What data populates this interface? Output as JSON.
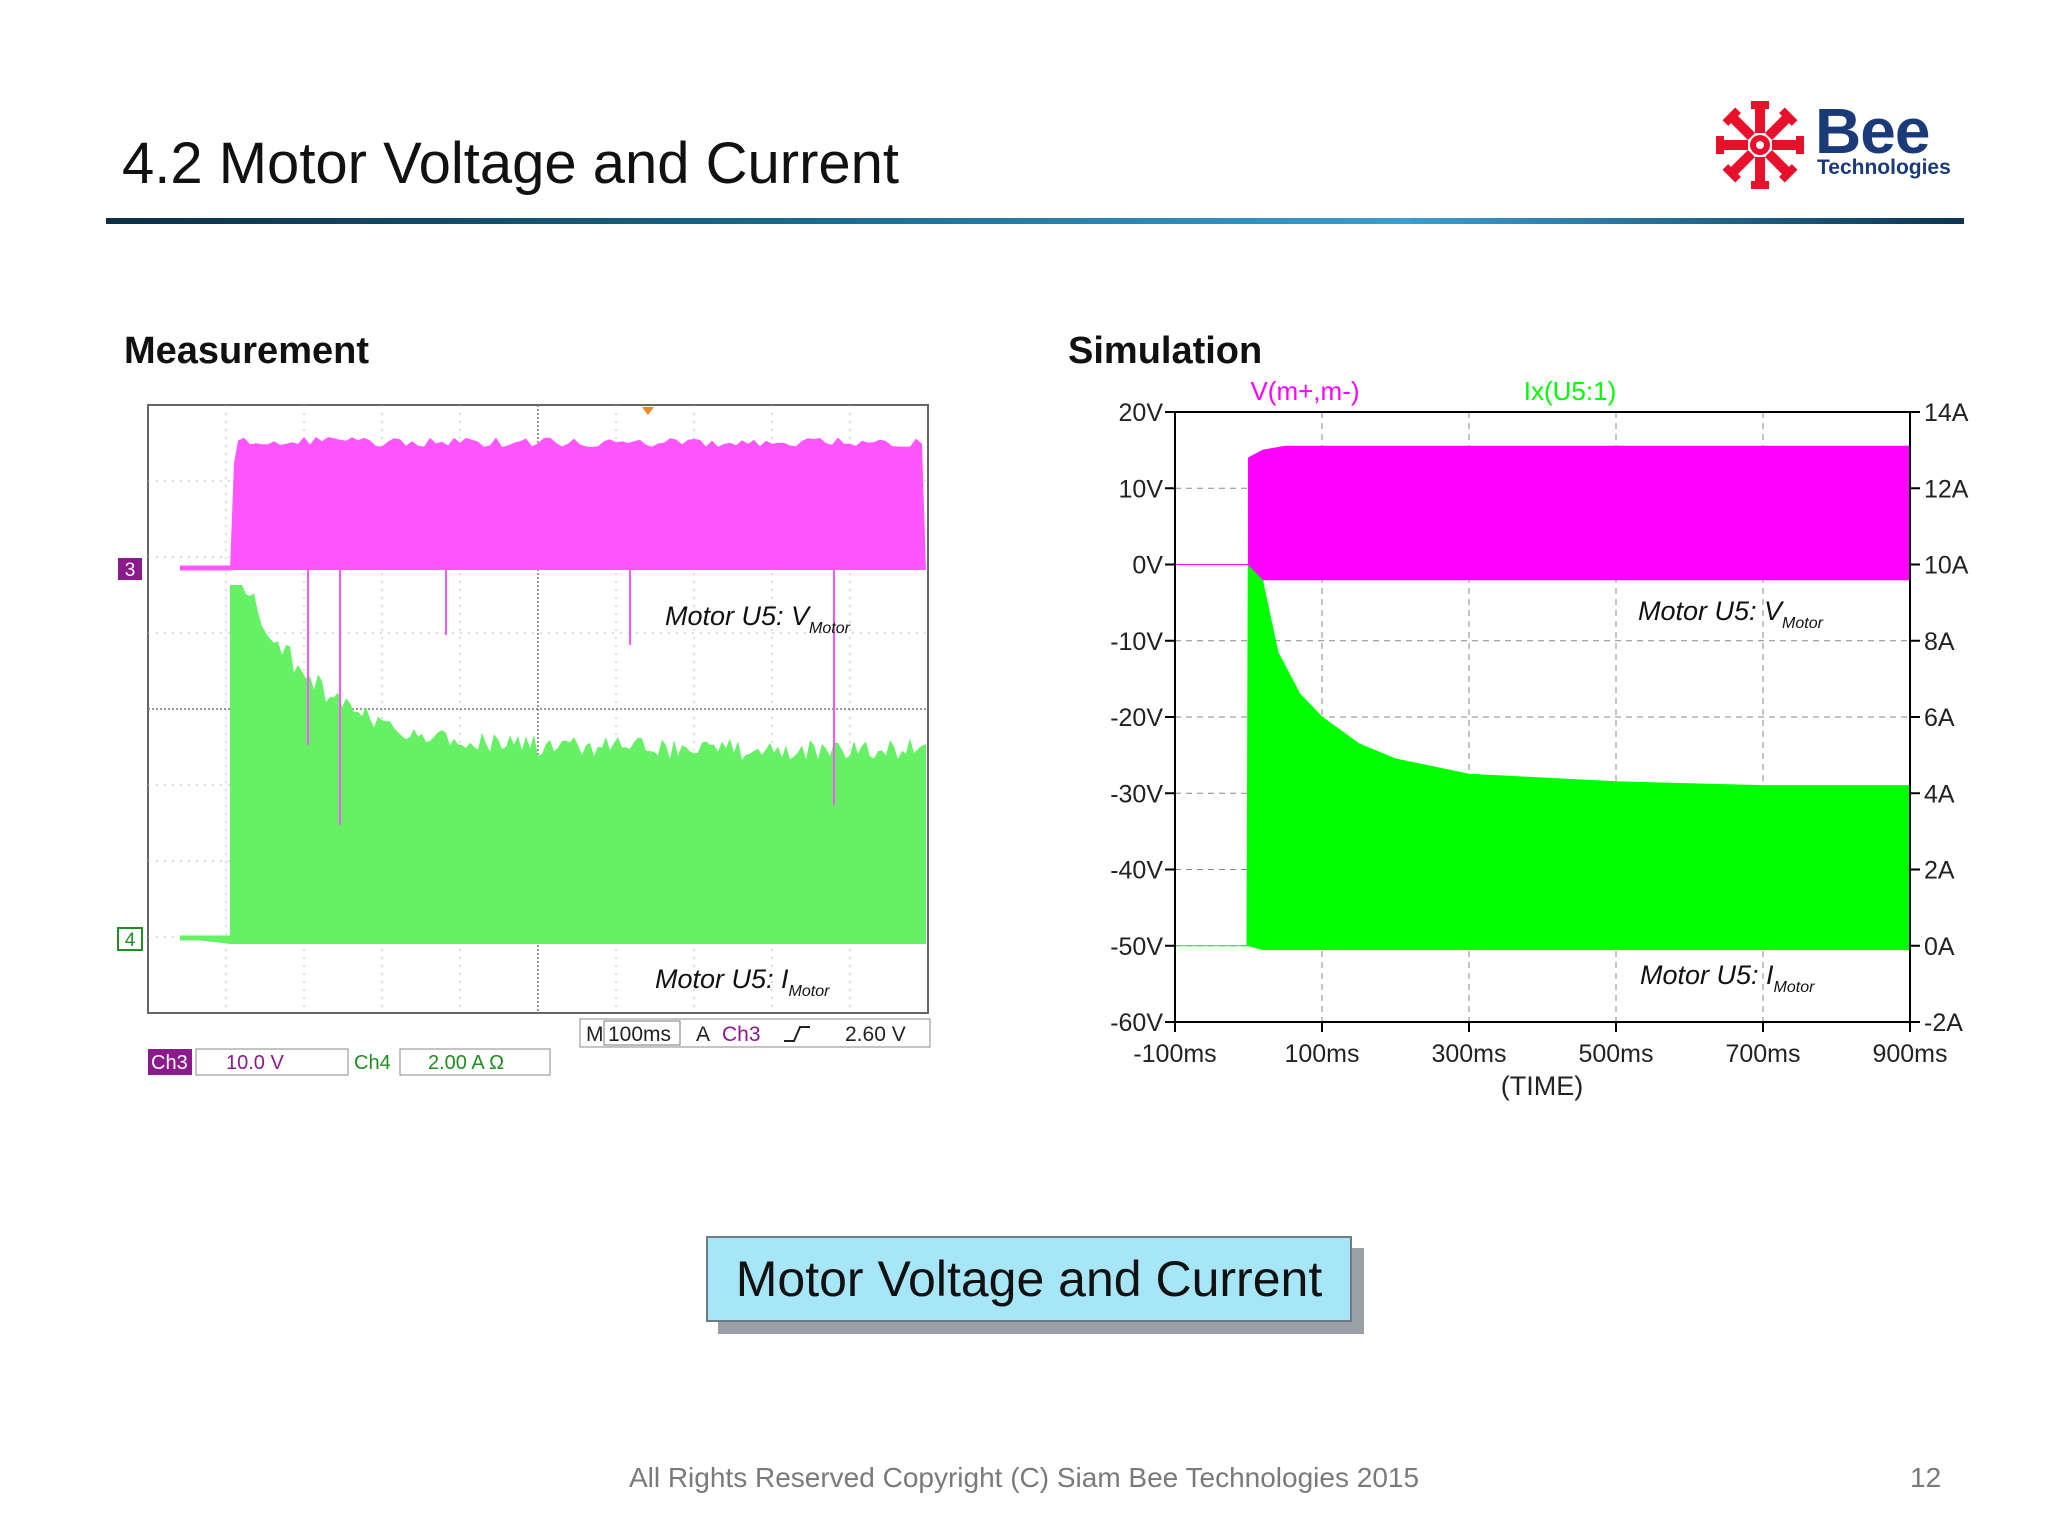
{
  "header": {
    "title": "4.2 Motor Voltage and Current",
    "logo": {
      "word": "Bee",
      "sub": "Technologies",
      "icon": "bee-star-icon",
      "color": "#1a3a79",
      "icon_color": "#e8102a"
    }
  },
  "sections": {
    "measurement": "Measurement",
    "simulation": "Simulation"
  },
  "scope": {
    "channel_markers": [
      "3",
      "4"
    ],
    "labels": {
      "voltage": "Motor U5: V",
      "current": "Motor U5: I",
      "subscript": "Motor"
    },
    "timebase": {
      "m": "M",
      "m_value": "100ms",
      "a": "A",
      "trigger_ch": "Ch3",
      "trigger_level": "2.60 V"
    },
    "ch3": {
      "name": "Ch3",
      "scale": "10.0 V"
    },
    "ch4": {
      "name": "Ch4",
      "scale": "2.00 A Ω"
    },
    "colors": {
      "ch3": "#ff55ff",
      "ch4": "#66f066",
      "ch3_badge": "#8c1a8c",
      "ch4_text": "#1e8f1e"
    }
  },
  "annotations": {
    "sim_voltage": "Motor U5: V",
    "sim_current": "Motor U5: I",
    "subscript": "Motor"
  },
  "chart_data": {
    "type": "line",
    "title": "",
    "xlabel": "(TIME)",
    "x_ticks": [
      "-100ms",
      "100ms",
      "300ms",
      "500ms",
      "700ms",
      "900ms"
    ],
    "xlim": [
      -100,
      900
    ],
    "y_left": {
      "ticks": [
        "20V",
        "10V",
        "0V",
        "-10V",
        "-20V",
        "-30V",
        "-40V",
        "-50V",
        "-60V"
      ],
      "lim": [
        -60,
        20
      ]
    },
    "y_right": {
      "ticks": [
        "14A",
        "12A",
        "10A",
        "8A",
        "6A",
        "4A",
        "2A",
        "0A",
        "-2A"
      ],
      "lim": [
        -2,
        14
      ]
    },
    "grid": true,
    "series": [
      {
        "name": "V(m+,m-)",
        "color": "#ff00ff",
        "axis": "left",
        "x": [
          -100,
          0,
          0,
          20,
          50,
          100,
          900
        ],
        "upper": [
          0,
          0,
          14,
          15,
          15.5,
          15.5,
          15.5
        ],
        "lower": [
          0,
          0,
          0,
          -2,
          -2,
          -2,
          -2
        ]
      },
      {
        "name": "Ix(U5:1)",
        "color": "#00ff00",
        "axis": "right",
        "x": [
          -100,
          -2,
          0,
          20,
          40,
          70,
          100,
          150,
          200,
          300,
          400,
          500,
          600,
          700,
          900
        ],
        "upper": [
          0,
          0,
          12,
          9.5,
          7.7,
          6.6,
          6.0,
          5.3,
          4.9,
          4.5,
          4.4,
          4.3,
          4.25,
          4.2,
          4.2
        ],
        "lower": [
          0,
          0,
          0,
          -0.1,
          -0.1,
          -0.1,
          -0.1,
          -0.1,
          -0.1,
          -0.1,
          -0.1,
          -0.1,
          -0.1,
          -0.1,
          -0.1
        ]
      }
    ]
  },
  "center_box": "Motor Voltage and Current",
  "footer": {
    "copyright": "All Rights Reserved Copyright (C) Siam Bee Technologies 2015",
    "page": "12"
  }
}
